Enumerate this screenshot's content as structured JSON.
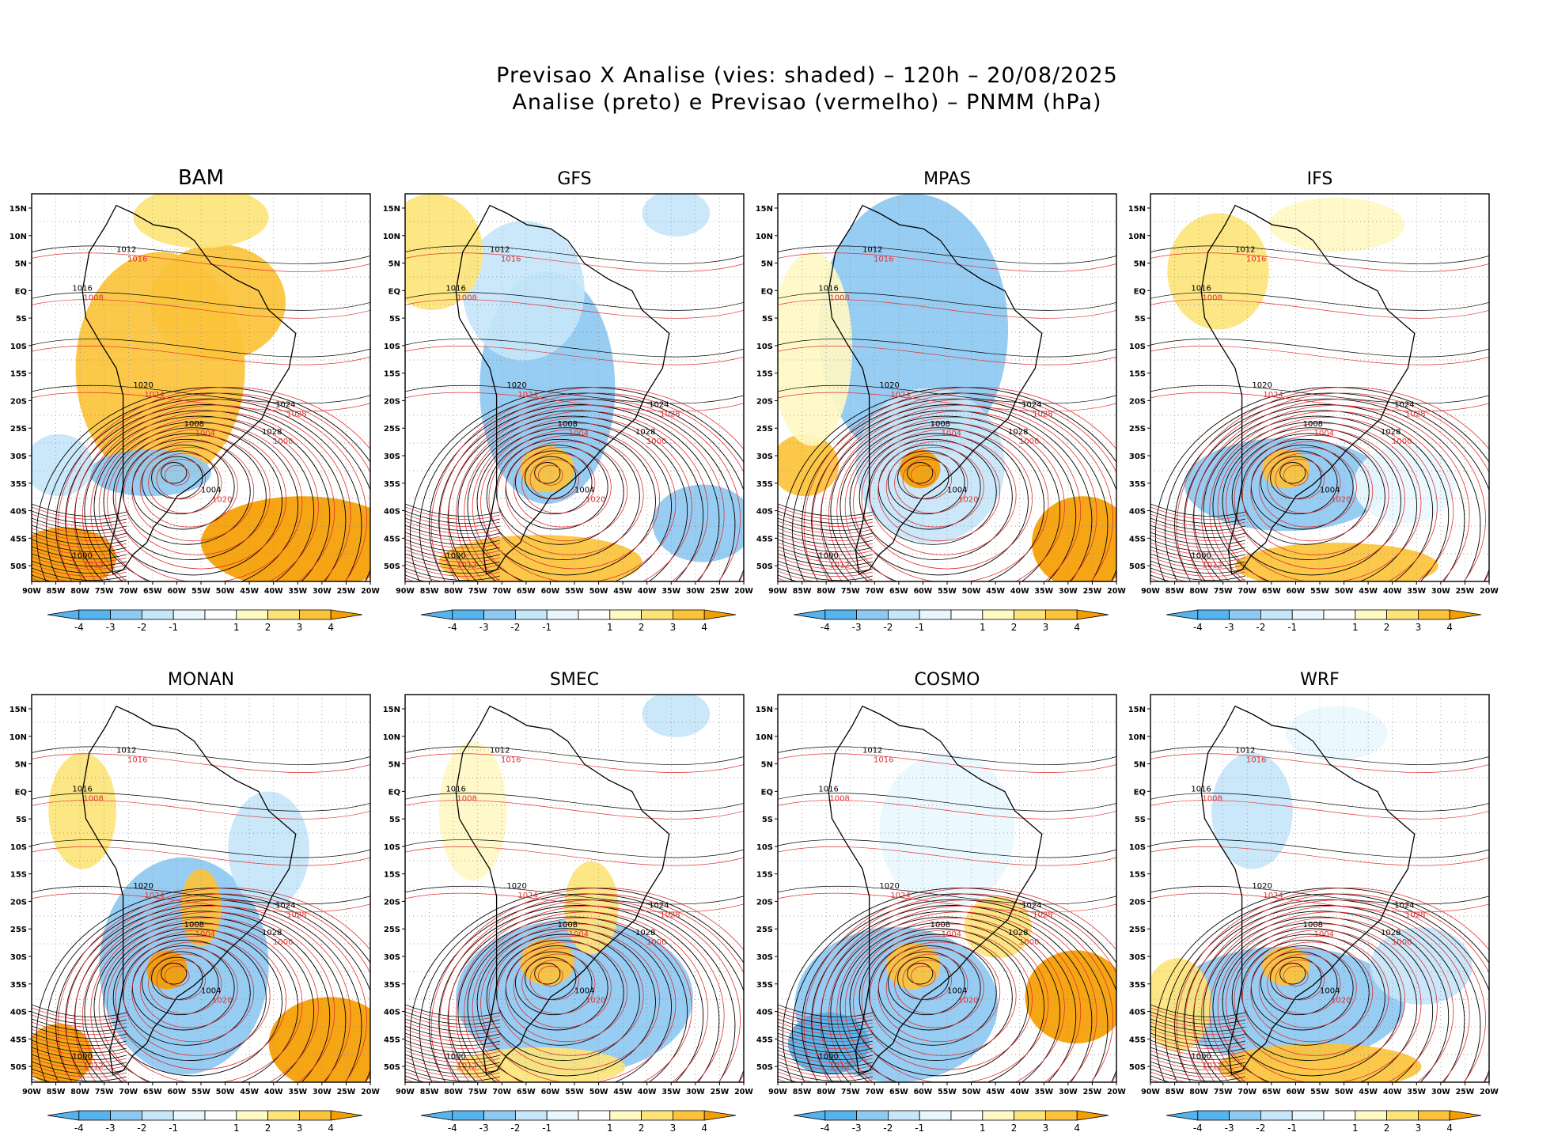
{
  "titles": {
    "line1": "Previsao X Analise (vies: shaded) – 120h – 20/08/2025",
    "line2": "Analise (preto) e Previsao (vermelho) – PNMM (hPa)"
  },
  "chart_data": {
    "type": "heatmap",
    "description_units": "bias in hPa (shaded); isobars PNMM in hPa",
    "panels": [
      {
        "name": "BAM",
        "bias": [
          {
            "cx": 0.38,
            "cy": 0.45,
            "rx": 0.25,
            "ry": 0.3,
            "v": 3
          },
          {
            "cx": 0.55,
            "cy": 0.28,
            "rx": 0.2,
            "ry": 0.15,
            "v": 3
          },
          {
            "cx": 0.8,
            "cy": 0.9,
            "rx": 0.3,
            "ry": 0.12,
            "v": 4
          },
          {
            "cx": 0.1,
            "cy": 0.94,
            "rx": 0.15,
            "ry": 0.08,
            "v": 4
          },
          {
            "cx": 0.5,
            "cy": 0.06,
            "rx": 0.2,
            "ry": 0.08,
            "v": 2
          },
          {
            "cx": 0.35,
            "cy": 0.72,
            "rx": 0.18,
            "ry": 0.06,
            "v": -3
          },
          {
            "cx": 0.08,
            "cy": 0.7,
            "rx": 0.1,
            "ry": 0.08,
            "v": -2
          }
        ]
      },
      {
        "name": "GFS",
        "bias": [
          {
            "cx": 0.42,
            "cy": 0.5,
            "rx": 0.2,
            "ry": 0.3,
            "v": -3
          },
          {
            "cx": 0.35,
            "cy": 0.25,
            "rx": 0.18,
            "ry": 0.18,
            "v": -2
          },
          {
            "cx": 0.42,
            "cy": 0.71,
            "rx": 0.08,
            "ry": 0.06,
            "v": 3
          },
          {
            "cx": 0.4,
            "cy": 0.95,
            "rx": 0.3,
            "ry": 0.07,
            "v": 3
          },
          {
            "cx": 0.88,
            "cy": 0.85,
            "rx": 0.15,
            "ry": 0.1,
            "v": -3
          },
          {
            "cx": 0.08,
            "cy": 0.15,
            "rx": 0.15,
            "ry": 0.15,
            "v": 2
          },
          {
            "cx": 0.8,
            "cy": 0.05,
            "rx": 0.1,
            "ry": 0.06,
            "v": -2
          }
        ]
      },
      {
        "name": "MPAS",
        "bias": [
          {
            "cx": 0.4,
            "cy": 0.35,
            "rx": 0.28,
            "ry": 0.35,
            "v": -3
          },
          {
            "cx": 0.45,
            "cy": 0.7,
            "rx": 0.22,
            "ry": 0.2,
            "v": -2
          },
          {
            "cx": 0.42,
            "cy": 0.71,
            "rx": 0.06,
            "ry": 0.05,
            "v": 4
          },
          {
            "cx": 0.9,
            "cy": 0.9,
            "rx": 0.15,
            "ry": 0.12,
            "v": 4
          },
          {
            "cx": 0.08,
            "cy": 0.7,
            "rx": 0.1,
            "ry": 0.08,
            "v": 3
          },
          {
            "cx": 0.1,
            "cy": 0.4,
            "rx": 0.12,
            "ry": 0.25,
            "v": 1
          }
        ]
      },
      {
        "name": "IFS",
        "bias": [
          {
            "cx": 0.4,
            "cy": 0.75,
            "rx": 0.3,
            "ry": 0.12,
            "v": -3
          },
          {
            "cx": 0.75,
            "cy": 0.75,
            "rx": 0.15,
            "ry": 0.1,
            "v": -1
          },
          {
            "cx": 0.4,
            "cy": 0.71,
            "rx": 0.07,
            "ry": 0.05,
            "v": 3
          },
          {
            "cx": 0.55,
            "cy": 0.96,
            "rx": 0.3,
            "ry": 0.06,
            "v": 3
          },
          {
            "cx": 0.2,
            "cy": 0.2,
            "rx": 0.15,
            "ry": 0.15,
            "v": 2
          },
          {
            "cx": 0.55,
            "cy": 0.08,
            "rx": 0.2,
            "ry": 0.07,
            "v": 1
          }
        ]
      },
      {
        "name": "MONAN",
        "bias": [
          {
            "cx": 0.45,
            "cy": 0.7,
            "rx": 0.25,
            "ry": 0.28,
            "v": -3
          },
          {
            "cx": 0.7,
            "cy": 0.4,
            "rx": 0.12,
            "ry": 0.15,
            "v": -2
          },
          {
            "cx": 0.4,
            "cy": 0.71,
            "rx": 0.06,
            "ry": 0.05,
            "v": 4
          },
          {
            "cx": 0.88,
            "cy": 0.9,
            "rx": 0.18,
            "ry": 0.12,
            "v": 4
          },
          {
            "cx": 0.08,
            "cy": 0.93,
            "rx": 0.1,
            "ry": 0.08,
            "v": 4
          },
          {
            "cx": 0.5,
            "cy": 0.55,
            "rx": 0.06,
            "ry": 0.1,
            "v": 3
          },
          {
            "cx": 0.15,
            "cy": 0.3,
            "rx": 0.1,
            "ry": 0.15,
            "v": 2
          }
        ]
      },
      {
        "name": "SMEC",
        "bias": [
          {
            "cx": 0.5,
            "cy": 0.78,
            "rx": 0.35,
            "ry": 0.2,
            "v": -3
          },
          {
            "cx": 0.42,
            "cy": 0.69,
            "rx": 0.08,
            "ry": 0.06,
            "v": 3
          },
          {
            "cx": 0.55,
            "cy": 0.55,
            "rx": 0.08,
            "ry": 0.12,
            "v": 2
          },
          {
            "cx": 0.2,
            "cy": 0.3,
            "rx": 0.1,
            "ry": 0.18,
            "v": 1
          },
          {
            "cx": 0.8,
            "cy": 0.05,
            "rx": 0.1,
            "ry": 0.06,
            "v": -2
          },
          {
            "cx": 0.4,
            "cy": 0.96,
            "rx": 0.25,
            "ry": 0.05,
            "v": 2
          }
        ]
      },
      {
        "name": "COSMO",
        "bias": [
          {
            "cx": 0.35,
            "cy": 0.8,
            "rx": 0.3,
            "ry": 0.2,
            "v": -3
          },
          {
            "cx": 0.5,
            "cy": 0.35,
            "rx": 0.2,
            "ry": 0.2,
            "v": -1
          },
          {
            "cx": 0.4,
            "cy": 0.7,
            "rx": 0.08,
            "ry": 0.06,
            "v": 3
          },
          {
            "cx": 0.88,
            "cy": 0.78,
            "rx": 0.15,
            "ry": 0.12,
            "v": 4
          },
          {
            "cx": 0.65,
            "cy": 0.6,
            "rx": 0.1,
            "ry": 0.08,
            "v": 2
          },
          {
            "cx": 0.15,
            "cy": 0.9,
            "rx": 0.12,
            "ry": 0.08,
            "v": -4
          }
        ]
      },
      {
        "name": "WRF",
        "bias": [
          {
            "cx": 0.4,
            "cy": 0.8,
            "rx": 0.35,
            "ry": 0.15,
            "v": -3
          },
          {
            "cx": 0.8,
            "cy": 0.7,
            "rx": 0.15,
            "ry": 0.1,
            "v": -2
          },
          {
            "cx": 0.4,
            "cy": 0.7,
            "rx": 0.07,
            "ry": 0.05,
            "v": 3
          },
          {
            "cx": 0.5,
            "cy": 0.96,
            "rx": 0.3,
            "ry": 0.06,
            "v": 3
          },
          {
            "cx": 0.08,
            "cy": 0.8,
            "rx": 0.1,
            "ry": 0.12,
            "v": 2
          },
          {
            "cx": 0.3,
            "cy": 0.3,
            "rx": 0.12,
            "ry": 0.15,
            "v": -2
          },
          {
            "cx": 0.55,
            "cy": 0.1,
            "rx": 0.15,
            "ry": 0.07,
            "v": -1
          }
        ]
      }
    ],
    "xticks": [
      "90W",
      "85W",
      "80W",
      "75W",
      "70W",
      "65W",
      "60W",
      "55W",
      "50W",
      "45W",
      "40W",
      "35W",
      "30W",
      "25W",
      "20W"
    ],
    "yticks": [
      "15N",
      "10N",
      "5N",
      "EQ",
      "5S",
      "10S",
      "15S",
      "20S",
      "25S",
      "30S",
      "35S",
      "40S",
      "45S",
      "50S"
    ],
    "colorbar_labels": [
      "-4",
      "-3",
      "-2",
      "-1",
      "1",
      "2",
      "3",
      "4"
    ],
    "colorbar_colors": {
      "-4": "#55b4ee",
      "-3": "#8ec9f2",
      "-2": "#c6e6fa",
      "-1": "#e9f7fd",
      "1": "#fff9c4",
      "2": "#fde47a",
      "3": "#fcc33a",
      "4": "#f59e00"
    },
    "contour_labels_black": [
      "1012",
      "1016",
      "1008",
      "1004",
      "1020",
      "1024",
      "1028",
      "1000"
    ],
    "contour_labels_red": [
      "1012",
      "1016",
      "1008",
      "1004",
      "1020",
      "1024",
      "1028",
      "1000"
    ],
    "contour_color_analysis": "#000000",
    "contour_color_forecast": "#e03131"
  }
}
